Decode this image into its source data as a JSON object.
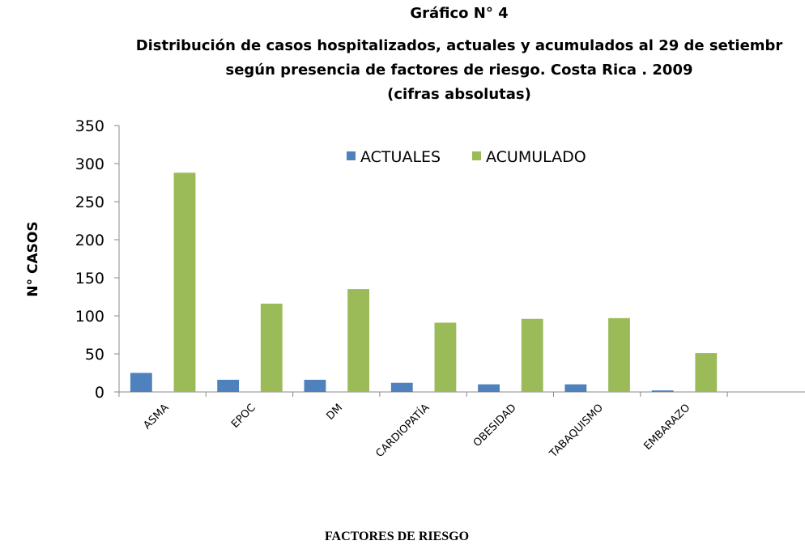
{
  "chart_data": {
    "type": "bar",
    "title": "Gráfico N° 4",
    "subtitle": [
      "Distribución de casos hospitalizados, actuales y acumulados al 29 de setiembr",
      "según presencia de factores de riesgo. Costa Rica . 2009",
      "(cifras absolutas)"
    ],
    "y_label": "N° CASOS",
    "x_label": "FACTORES DE RIESGO",
    "categories": [
      "ASMA",
      "EPOC",
      "DM",
      "CARDIOPATÍA",
      "OBESIDAD",
      "TABAQUISMO",
      "EMBARAZO",
      null
    ],
    "series": [
      {
        "name": "ACTUALES",
        "color": "#4f81bd",
        "values": [
          25,
          16,
          16,
          12,
          10,
          10,
          2,
          null
        ]
      },
      {
        "name": "ACUMULADO",
        "color": "#9bbb59",
        "values": [
          288,
          116,
          135,
          91,
          96,
          97,
          51,
          null
        ]
      }
    ],
    "ylim": [
      0,
      350
    ],
    "yticks": [
      0,
      50,
      100,
      150,
      200,
      250,
      300,
      350
    ],
    "grid": false,
    "legend": "top"
  }
}
